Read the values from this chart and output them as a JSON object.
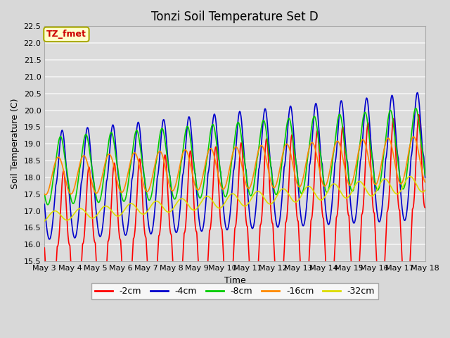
{
  "title": "Tonzi Soil Temperature Set D",
  "xlabel": "Time",
  "ylabel": "Soil Temperature (C)",
  "ylim": [
    15.5,
    22.5
  ],
  "x_tick_labels": [
    "May 3",
    "May 4",
    "May 5",
    "May 6",
    "May 7",
    "May 8",
    "May 9",
    "May 10",
    "May 11",
    "May 12",
    "May 13",
    "May 14",
    "May 15",
    "May 16",
    "May 17",
    "May 18"
  ],
  "series_labels": [
    "-2cm",
    "-4cm",
    "-8cm",
    "-16cm",
    "-32cm"
  ],
  "series_colors": [
    "#ff0000",
    "#0000cc",
    "#00cc00",
    "#ff8800",
    "#dddd00"
  ],
  "line_width": 1.2,
  "legend_label": "TZ_fmet",
  "legend_label_color": "#cc0000",
  "legend_box_facecolor": "#ffffcc",
  "legend_box_edgecolor": "#aaaa00",
  "fig_facecolor": "#d8d8d8",
  "axes_facecolor": "#dcdcdc",
  "grid_color": "#f5f5f5",
  "title_fontsize": 12,
  "axis_label_fontsize": 9,
  "tick_fontsize": 8,
  "legend_fontsize": 9
}
